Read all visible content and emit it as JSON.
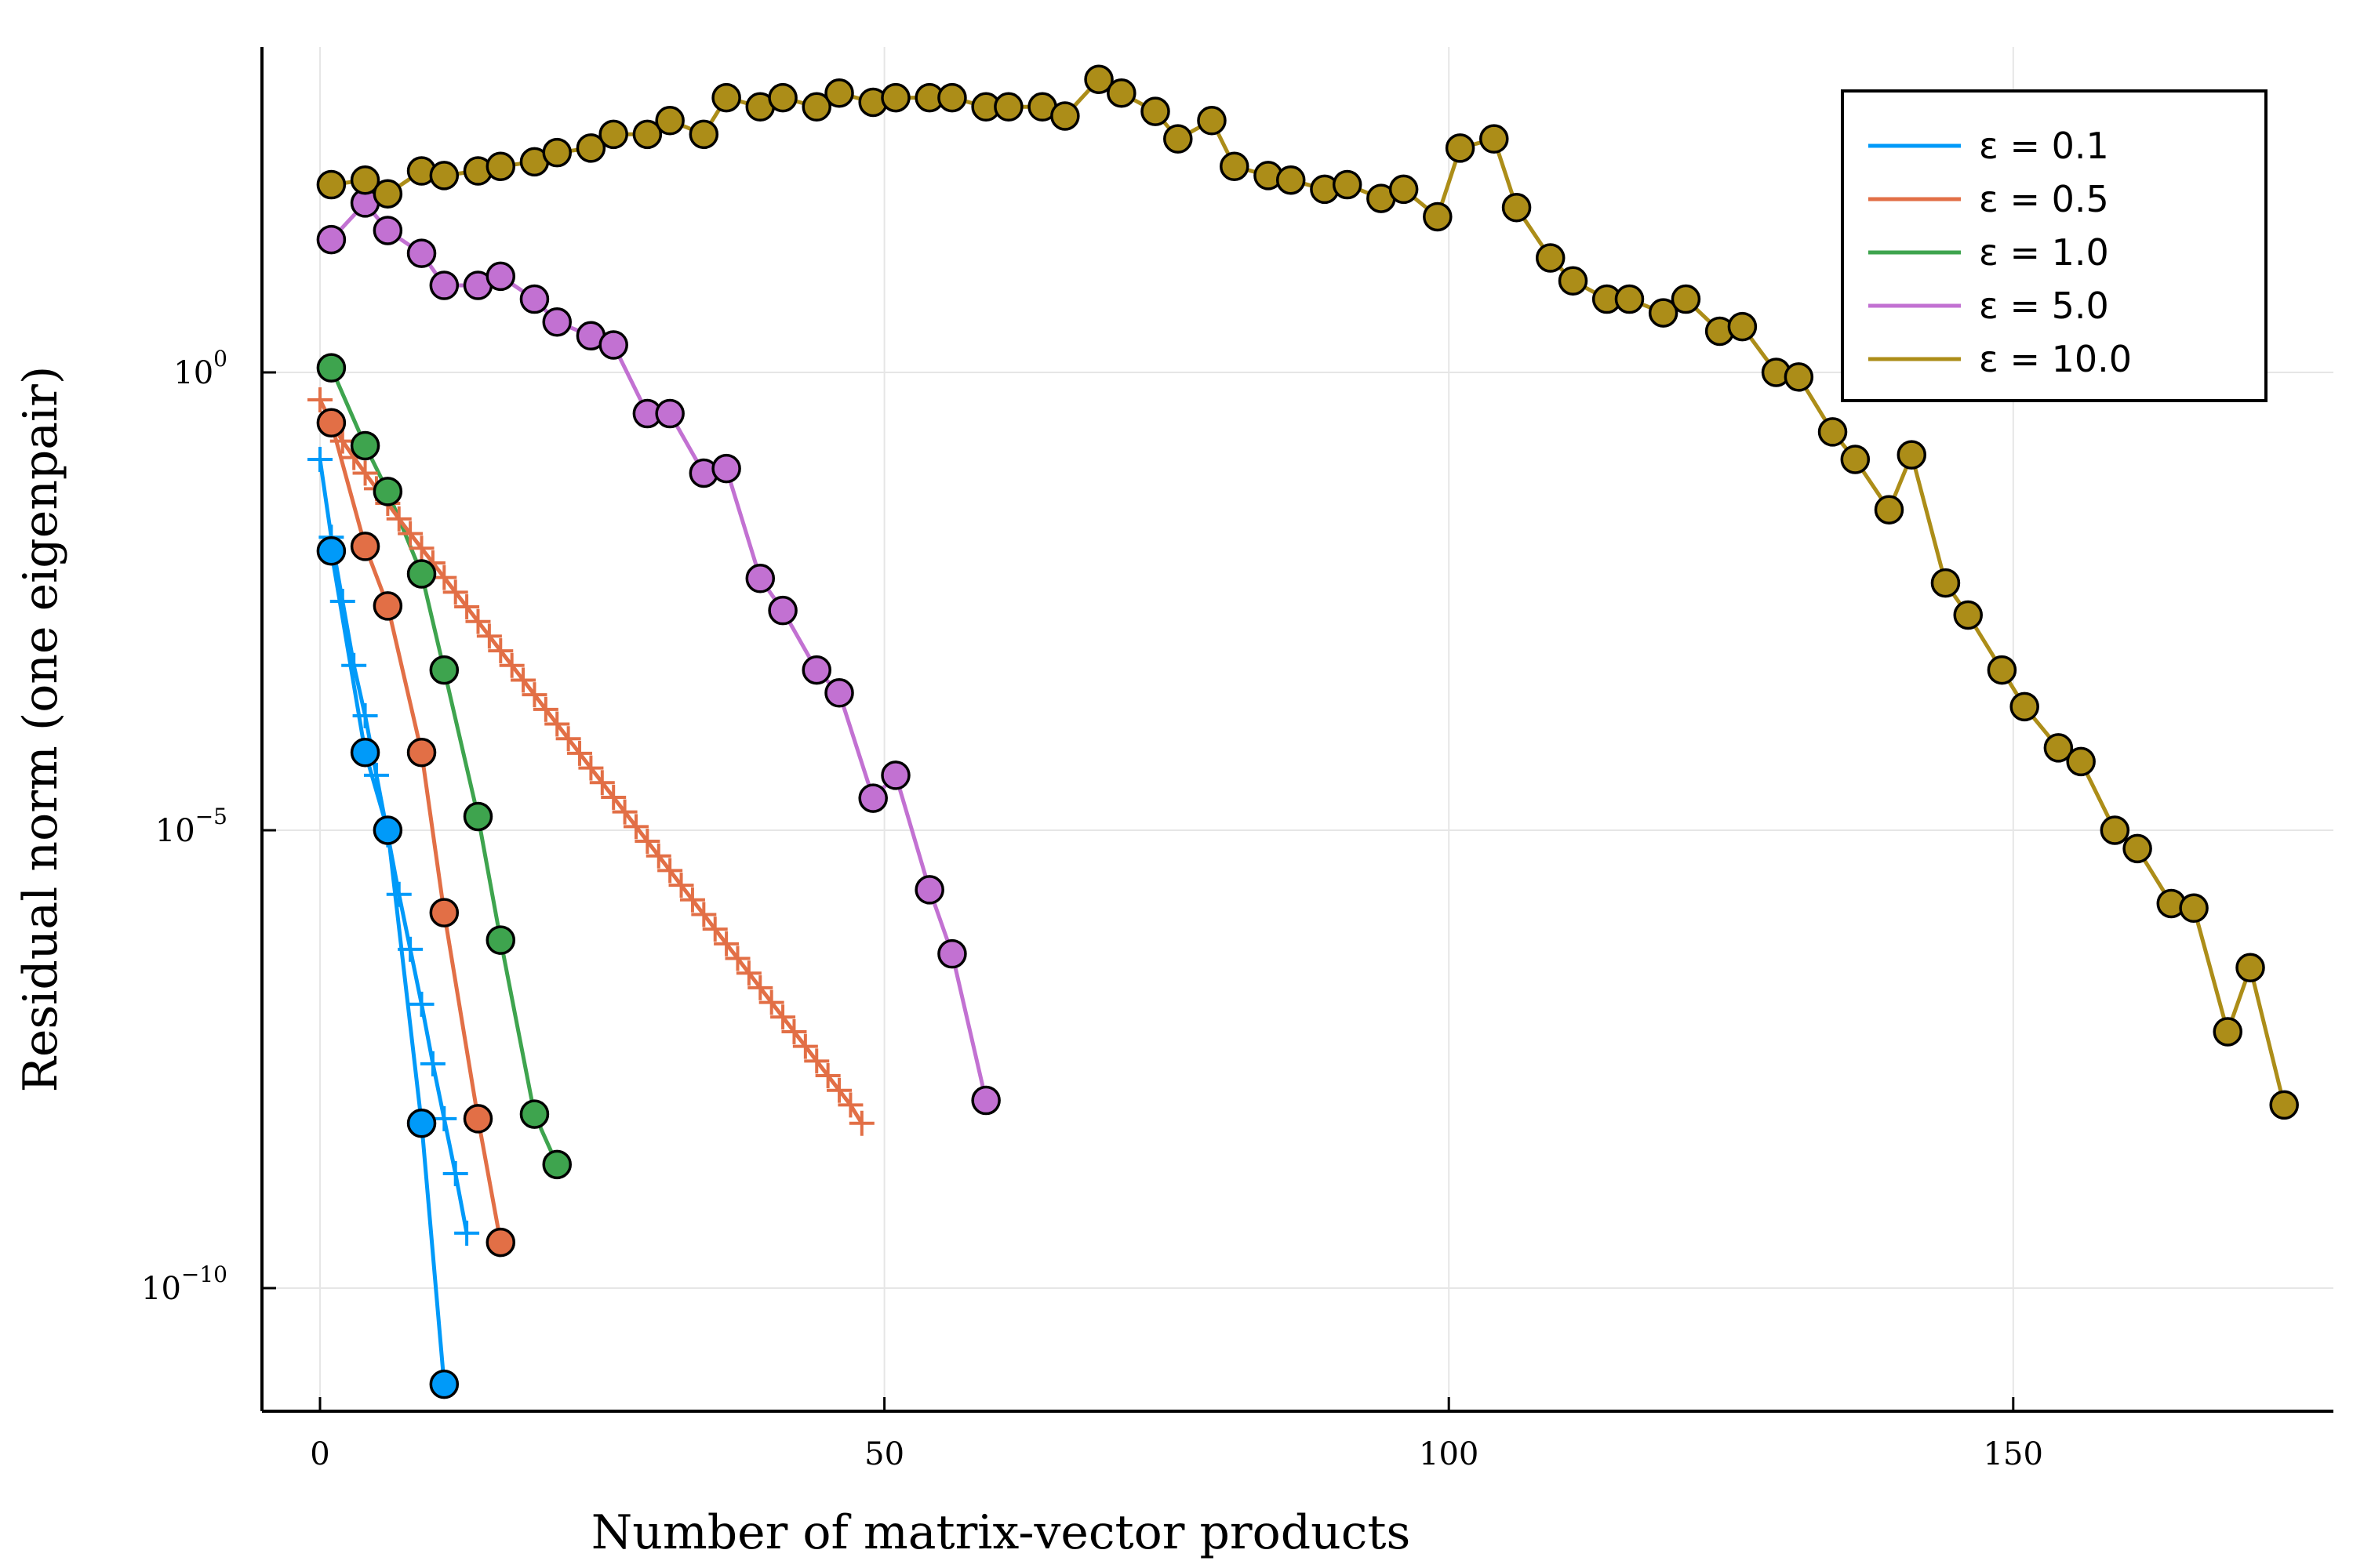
{
  "chart_data": {
    "type": "scatter",
    "xlabel": "Number of matrix-vector products",
    "ylabel": "Residual norm (one eigenpair)",
    "x_ticks": [
      0,
      50,
      100,
      150
    ],
    "x_tick_labels": [
      "0",
      "50",
      "100",
      "150"
    ],
    "y_ticks": [
      0,
      -5,
      -10
    ],
    "y_tick_base": "10",
    "y_tick_exponents": [
      "0",
      "−5",
      "−10"
    ],
    "xlim": [
      -5,
      180
    ],
    "ylim_log10": [
      -11.4,
      3.5
    ],
    "yscale": "log",
    "grid": true,
    "legend_position": "top-right",
    "colors": {
      "eps_0_1": "#009af9",
      "eps_0_5": "#e26f46",
      "eps_1_0": "#3ea44e",
      "eps_5_0": "#c271d2",
      "eps_10_0": "#ac8d18"
    },
    "series": [
      {
        "name": "ε = 0.1",
        "color": "#009af9",
        "marker": "circle",
        "x": [
          1,
          4,
          6,
          9,
          11
        ],
        "log10_y": [
          -1.95,
          -4.15,
          -5.0,
          -8.2,
          -11.05
        ]
      },
      {
        "name": "ε = 0.5",
        "color": "#e26f46",
        "marker": "circle",
        "x": [
          1,
          4,
          6,
          9,
          11,
          14,
          16
        ],
        "log10_y": [
          -0.55,
          -1.9,
          -2.55,
          -4.15,
          -5.9,
          -8.15,
          -9.5
        ]
      },
      {
        "name": "ε = 1.0",
        "color": "#3ea44e",
        "marker": "circle",
        "x": [
          1,
          4,
          6,
          9,
          11,
          14,
          16,
          19,
          21
        ],
        "log10_y": [
          0.05,
          -0.8,
          -1.3,
          -2.2,
          -3.25,
          -4.85,
          -6.2,
          -8.1,
          -8.65
        ]
      },
      {
        "name": "ε = 5.0",
        "color": "#c271d2",
        "marker": "circle",
        "x": [
          1,
          4,
          6,
          9,
          11,
          14,
          16,
          19,
          21,
          24,
          26,
          29,
          31,
          34,
          36,
          39,
          41,
          44,
          46,
          49,
          51,
          54,
          56,
          59
        ],
        "log10_y": [
          1.45,
          1.85,
          1.55,
          1.3,
          0.95,
          0.95,
          1.05,
          0.8,
          0.55,
          0.4,
          0.3,
          -0.45,
          -0.45,
          -1.1,
          -1.05,
          -2.25,
          -2.6,
          -3.25,
          -3.5,
          -4.65,
          -4.4,
          -5.65,
          -6.35,
          -7.95
        ]
      },
      {
        "name": "ε = 10.0",
        "color": "#ac8d18",
        "marker": "circle",
        "x": [
          1,
          4,
          6,
          9,
          11,
          14,
          16,
          19,
          21,
          24,
          26,
          29,
          31,
          34,
          36,
          39,
          41,
          44,
          46,
          49,
          51,
          54,
          56,
          59,
          61,
          64,
          66,
          69,
          71,
          74,
          76,
          79,
          81,
          84,
          86,
          89,
          91,
          94,
          96,
          99,
          101,
          104,
          106,
          109,
          111,
          114,
          116,
          119,
          121,
          124,
          126,
          129,
          131,
          134,
          136,
          139,
          141,
          144,
          146,
          149,
          151,
          154,
          156,
          159,
          161,
          164,
          166,
          169,
          171,
          174
        ],
        "log10_y": [
          2.05,
          2.1,
          1.95,
          2.2,
          2.15,
          2.2,
          2.25,
          2.3,
          2.4,
          2.45,
          2.6,
          2.6,
          2.75,
          2.6,
          3.0,
          2.9,
          3.0,
          2.9,
          3.05,
          2.95,
          3.0,
          3.0,
          3.0,
          2.9,
          2.9,
          2.9,
          2.8,
          3.2,
          3.05,
          2.85,
          2.55,
          2.75,
          2.25,
          2.15,
          2.1,
          2.0,
          2.05,
          1.9,
          2.0,
          1.7,
          2.45,
          2.55,
          1.8,
          1.25,
          1.0,
          0.8,
          0.8,
          0.65,
          0.8,
          0.45,
          0.5,
          0.0,
          -0.05,
          -0.65,
          -0.95,
          -1.5,
          -0.9,
          -2.3,
          -2.65,
          -3.25,
          -3.65,
          -4.1,
          -4.25,
          -5.0,
          -5.2,
          -5.8,
          -5.85,
          -7.2,
          -6.5,
          -8.0
        ]
      },
      {
        "name": "ε = 0.1 (crosses)",
        "color": "#009af9",
        "marker": "cross",
        "x": [
          0,
          1,
          2,
          3,
          4,
          5,
          6,
          7,
          8,
          9,
          10,
          11,
          12,
          13
        ],
        "log10_y": [
          -0.95,
          -1.8,
          -2.5,
          -3.2,
          -3.75,
          -4.4,
          -5.05,
          -5.7,
          -6.3,
          -6.9,
          -7.55,
          -8.15,
          -8.75,
          -9.4
        ]
      },
      {
        "name": "ε = 0.5 (crosses)",
        "color": "#e26f46",
        "marker": "cross",
        "x": [
          0,
          1,
          2,
          3,
          4,
          5,
          6,
          7,
          8,
          9,
          10,
          11,
          12,
          13,
          14,
          15,
          16,
          17,
          18,
          19,
          20,
          21,
          22,
          23,
          24,
          25,
          26,
          27,
          28,
          29,
          30,
          31,
          32,
          33,
          34,
          35,
          36,
          37,
          38,
          39,
          40,
          41,
          42,
          43,
          44,
          45,
          46,
          47,
          48
        ],
        "log10_y": [
          -0.3,
          -0.55,
          -0.75,
          -0.93,
          -1.1,
          -1.27,
          -1.43,
          -1.6,
          -1.76,
          -1.92,
          -2.08,
          -2.24,
          -2.4,
          -2.56,
          -2.72,
          -2.88,
          -3.04,
          -3.2,
          -3.36,
          -3.52,
          -3.68,
          -3.84,
          -4.0,
          -4.16,
          -4.32,
          -4.48,
          -4.64,
          -4.8,
          -4.96,
          -5.12,
          -5.28,
          -5.44,
          -5.6,
          -5.76,
          -5.92,
          -6.08,
          -6.24,
          -6.4,
          -6.56,
          -6.72,
          -6.88,
          -7.04,
          -7.2,
          -7.36,
          -7.52,
          -7.68,
          -7.84,
          -8.0,
          -8.2
        ]
      }
    ],
    "legend": [
      {
        "label": "ε = 0.1",
        "color": "#009af9"
      },
      {
        "label": "ε = 0.5",
        "color": "#e26f46"
      },
      {
        "label": "ε = 1.0",
        "color": "#3ea44e"
      },
      {
        "label": "ε = 5.0",
        "color": "#c271d2"
      },
      {
        "label": "ε = 10.0",
        "color": "#ac8d18"
      }
    ]
  }
}
